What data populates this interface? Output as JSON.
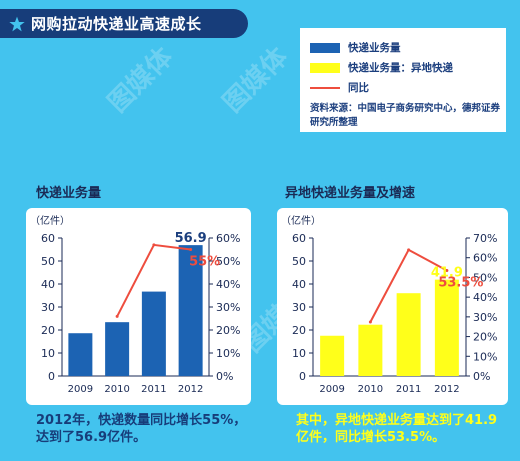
{
  "header": {
    "title": "网购拉动快递业高速成长"
  },
  "legend": {
    "items": [
      {
        "label": "快递业务量",
        "color": "#1c63b3",
        "kind": "bar"
      },
      {
        "label": "快递业务量：异地快递",
        "color": "#ffff1a",
        "kind": "bar"
      },
      {
        "label": "同比",
        "color": "#ee4d3e",
        "kind": "line"
      }
    ],
    "source": "资料来源：中国电子商务研究中心，德邦证券研究所整理"
  },
  "colors": {
    "background": "#43c3ee",
    "header": "#173d7a",
    "bar_blue": "#1c63b3",
    "bar_yellow": "#ffff1a",
    "line_red": "#ee4d3e"
  },
  "watermark": "图媒体",
  "chart_data": [
    {
      "type": "bar",
      "title": "快递业务量",
      "unit_label": "（亿件）",
      "categories": [
        "2009",
        "2010",
        "2011",
        "2012"
      ],
      "series": [
        {
          "name": "快递业务量",
          "values": [
            18.6,
            23.4,
            36.7,
            56.9
          ],
          "axis": "left",
          "kind": "bar"
        },
        {
          "name": "同比",
          "values": [
            null,
            25.9,
            57.0,
            55.0
          ],
          "axis": "right",
          "kind": "line",
          "unit": "%"
        }
      ],
      "ylim": [
        0,
        60
      ],
      "yticks": [
        "0",
        "10",
        "20",
        "30",
        "40",
        "50",
        "60"
      ],
      "y2lim": [
        0,
        60
      ],
      "y2ticks": [
        "0%",
        "10%",
        "20%",
        "30%",
        "40%",
        "50%",
        "60%"
      ],
      "annotations": [
        {
          "text": "56.9",
          "target": "bar-2012"
        },
        {
          "text": "55%",
          "target": "line-2012"
        }
      ],
      "grid": false
    },
    {
      "type": "bar",
      "title": "异地快递业务量及增速",
      "unit_label": "（亿件）",
      "categories": [
        "2009",
        "2010",
        "2011",
        "2012"
      ],
      "series": [
        {
          "name": "快递业务量：异地快递",
          "values": [
            17.5,
            22.3,
            36.0,
            41.9
          ],
          "axis": "left",
          "kind": "bar"
        },
        {
          "name": "同比",
          "values": [
            null,
            27.4,
            64.0,
            53.5
          ],
          "axis": "right",
          "kind": "line",
          "unit": "%"
        }
      ],
      "ylim": [
        0,
        60
      ],
      "yticks": [
        "0",
        "10",
        "20",
        "30",
        "40",
        "50",
        "60"
      ],
      "y2lim": [
        0,
        70
      ],
      "y2ticks": [
        "0%",
        "10%",
        "20%",
        "30%",
        "40%",
        "50%",
        "60%",
        "70%"
      ],
      "annotations": [
        {
          "text": "41.9",
          "target": "bar-2012"
        },
        {
          "text": "53.5%",
          "target": "line-2012"
        }
      ],
      "grid": false
    }
  ],
  "captions": {
    "left": "2012年，快递数量同比增长55%，达到了56.9亿件。",
    "right": "其中，异地快递业务量达到了41.9亿件，同比增长53.5%。"
  }
}
